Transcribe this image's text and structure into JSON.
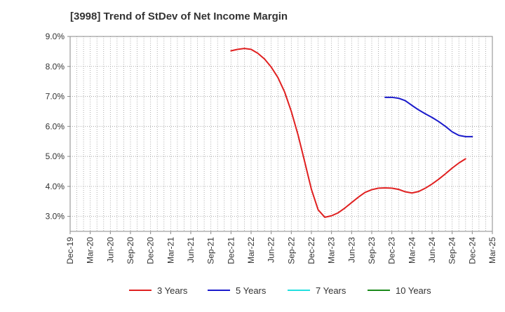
{
  "chart_data": {
    "type": "line",
    "title": "[3998]  Trend of StDev of Net Income Margin",
    "xlabel": "",
    "ylabel": "",
    "x_tick_labels": [
      "Dec-19",
      "Mar-20",
      "Jun-20",
      "Sep-20",
      "Dec-20",
      "Mar-21",
      "Jun-21",
      "Sep-21",
      "Dec-21",
      "Mar-22",
      "Jun-22",
      "Sep-22",
      "Dec-22",
      "Mar-23",
      "Jun-23",
      "Sep-23",
      "Dec-23",
      "Mar-24",
      "Jun-24",
      "Sep-24",
      "Dec-24",
      "Mar-25"
    ],
    "y_tick_labels": [
      "3.0%",
      "4.0%",
      "5.0%",
      "6.0%",
      "7.0%",
      "8.0%",
      "9.0%"
    ],
    "ylim": [
      2.5,
      9.0
    ],
    "y_ticks": [
      3,
      4,
      5,
      6,
      7,
      8,
      9
    ],
    "grid": true,
    "legend_position": "bottom",
    "series": [
      {
        "name": "3 Years",
        "color": "#e02020",
        "points": [
          [
            "Dec-21",
            8.52
          ],
          [
            "Jan-22",
            8.57
          ],
          [
            "Feb-22",
            8.6
          ],
          [
            "Mar-22",
            8.57
          ],
          [
            "Apr-22",
            8.44
          ],
          [
            "May-22",
            8.25
          ],
          [
            "Jun-22",
            7.98
          ],
          [
            "Jul-22",
            7.63
          ],
          [
            "Aug-22",
            7.15
          ],
          [
            "Sep-22",
            6.5
          ],
          [
            "Oct-22",
            5.72
          ],
          [
            "Nov-22",
            4.82
          ],
          [
            "Dec-22",
            3.9
          ],
          [
            "Jan-23",
            3.22
          ],
          [
            "Feb-23",
            2.97
          ],
          [
            "Mar-23",
            3.02
          ],
          [
            "Apr-23",
            3.12
          ],
          [
            "May-23",
            3.28
          ],
          [
            "Jun-23",
            3.46
          ],
          [
            "Jul-23",
            3.64
          ],
          [
            "Aug-23",
            3.8
          ],
          [
            "Sep-23",
            3.89
          ],
          [
            "Oct-23",
            3.94
          ],
          [
            "Nov-23",
            3.95
          ],
          [
            "Dec-23",
            3.94
          ],
          [
            "Jan-24",
            3.9
          ],
          [
            "Feb-24",
            3.82
          ],
          [
            "Mar-24",
            3.78
          ],
          [
            "Apr-24",
            3.83
          ],
          [
            "May-24",
            3.94
          ],
          [
            "Jun-24",
            4.08
          ],
          [
            "Jul-24",
            4.24
          ],
          [
            "Aug-24",
            4.42
          ],
          [
            "Sep-24",
            4.61
          ],
          [
            "Oct-24",
            4.78
          ],
          [
            "Nov-24",
            4.92
          ]
        ]
      },
      {
        "name": "5 Years",
        "color": "#1a1acc",
        "points": [
          [
            "Nov-23",
            6.97
          ],
          [
            "Dec-23",
            6.97
          ],
          [
            "Jan-24",
            6.94
          ],
          [
            "Feb-24",
            6.86
          ],
          [
            "Mar-24",
            6.7
          ],
          [
            "Apr-24",
            6.55
          ],
          [
            "May-24",
            6.42
          ],
          [
            "Jun-24",
            6.3
          ],
          [
            "Jul-24",
            6.16
          ],
          [
            "Aug-24",
            6.0
          ],
          [
            "Sep-24",
            5.82
          ],
          [
            "Oct-24",
            5.7
          ],
          [
            "Nov-24",
            5.66
          ],
          [
            "Dec-24",
            5.66
          ]
        ]
      },
      {
        "name": "7 Years",
        "color": "#22e0e0",
        "points": []
      },
      {
        "name": "10 Years",
        "color": "#1a8a1a",
        "points": []
      }
    ]
  }
}
